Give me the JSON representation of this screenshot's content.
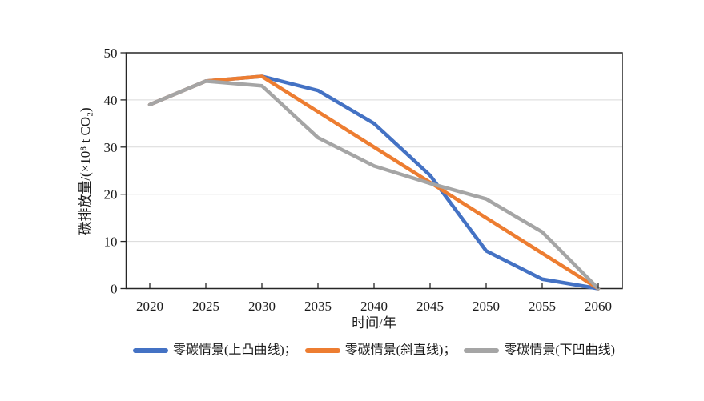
{
  "colors": {
    "background": "#ffffff",
    "frame": "#262626",
    "gridline": "#d9d9d9",
    "text": "#1a1a1a",
    "series_blue": "#4472C4",
    "series_orange": "#ED7D31",
    "series_gray": "#A5A5A5"
  },
  "chart_data": {
    "type": "line",
    "title": "",
    "xlabel": "时间/年",
    "ylabel": "碳排放量/(×10⁸ t CO₂)",
    "categories": [
      2020,
      2025,
      2030,
      2035,
      2040,
      2045,
      2050,
      2055,
      2060
    ],
    "yticks": [
      0,
      10,
      20,
      30,
      40,
      50
    ],
    "ylim": [
      0,
      50
    ],
    "grid": "horizontal",
    "legend_position": "bottom",
    "series": [
      {
        "name": "零碳情景(上凸曲线)",
        "legend_label": "零碳情景(上凸曲线)；",
        "color": "#4472C4",
        "values": [
          39,
          44,
          45,
          42,
          35,
          24,
          8,
          2,
          0
        ]
      },
      {
        "name": "零碳情景(斜直线)",
        "legend_label": "零碳情景(斜直线)；",
        "color": "#ED7D31",
        "values": [
          39,
          44,
          45,
          37.5,
          30,
          22.5,
          15,
          7.5,
          0
        ]
      },
      {
        "name": "零碳情景(下凹曲线)",
        "legend_label": "零碳情景(下凹曲线)",
        "color": "#A5A5A5",
        "values": [
          39,
          44,
          43,
          32,
          26,
          22.3,
          19,
          12,
          0
        ]
      }
    ]
  }
}
